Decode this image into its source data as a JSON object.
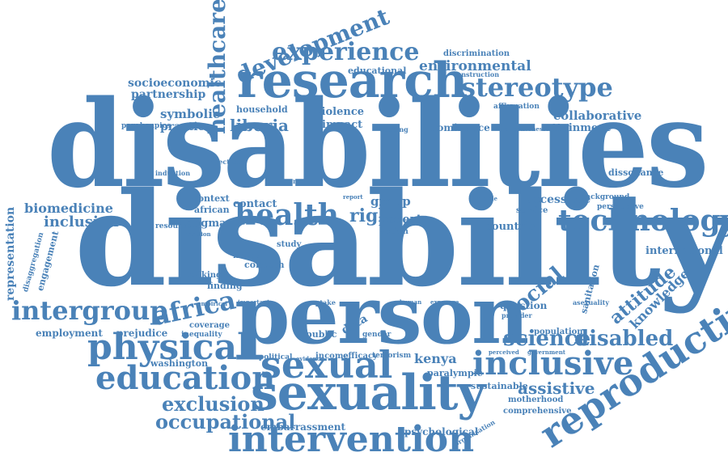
{
  "cloud": {
    "color": "#4a82b8",
    "words": [
      "disabilities",
      "disability",
      "person",
      "research",
      "sexuality",
      "sexual",
      "intervention",
      "education",
      "physical",
      "reproductive",
      "inclusive",
      "technology",
      "experience",
      "stereotype",
      "health",
      "development",
      "healthcare",
      "africa",
      "intergroup",
      "exclusion",
      "occupational",
      "social",
      "science",
      "disabled",
      "attitude",
      "knowledge",
      "assistive",
      "liberia",
      "environmental",
      "socioeconomic",
      "partnership",
      "symbolic",
      "practice",
      "inclusion",
      "biomedicine",
      "representation",
      "collaborative",
      "attainment",
      "discrimination",
      "employment",
      "prejudice",
      "kenya",
      "educational",
      "household",
      "violence",
      "impact",
      "dominance",
      "right",
      "group",
      "poverty",
      "contact",
      "stigma",
      "context",
      "african",
      "accessible",
      "international",
      "countrie",
      "question",
      "population",
      "service",
      "sanitation",
      "paralympic",
      "sustainable",
      "comprehensive",
      "embarrassment",
      "psychological",
      "motherhood",
      "washington",
      "coverage",
      "inequality",
      "finding",
      "making",
      "media",
      "concern",
      "data",
      "public",
      "political",
      "income",
      "efficacy",
      "gender",
      "terrorism",
      "affirmation",
      "construction",
      "effectiveness",
      "scoping",
      "paralympics",
      "infectious",
      "induction",
      "dissonance",
      "background",
      "perspective",
      "government",
      "organisation",
      "perceived",
      "asexuality",
      "provider",
      "engagement",
      "disaggregation",
      "resource",
      "decision",
      "empirical",
      "important",
      "evidence",
      "action",
      "study",
      "uptake",
      "human",
      "exposure",
      "middle",
      "report",
      "region"
    ]
  }
}
